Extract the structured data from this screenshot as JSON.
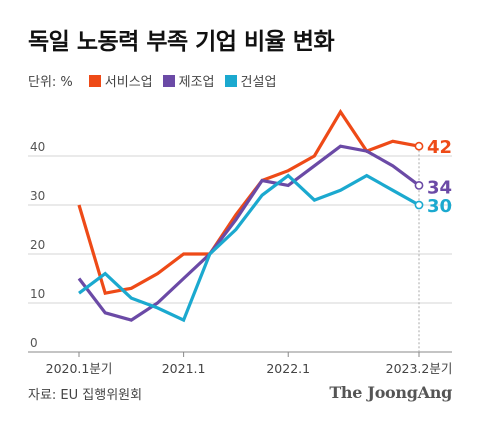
{
  "title": "독일 노동력 부족 기업 비율 변화",
  "unit_label": "단위: %",
  "source": "자료: EU 집행위원회",
  "brand": "The JoongAng",
  "chart_data": {
    "type": "line",
    "title": "독일 노동력 부족 기업 비율 변화",
    "ylim": [
      0,
      50
    ],
    "y_ticks": [
      0,
      10,
      20,
      30,
      40
    ],
    "grid": true,
    "x_tick_labels": [
      {
        "index": 0,
        "label": "2020.1분기"
      },
      {
        "index": 4,
        "label": "2021.1"
      },
      {
        "index": 8,
        "label": "2022.1"
      },
      {
        "index": 13,
        "label": "2023.2분기"
      }
    ],
    "series": [
      {
        "name": "서비스업",
        "color": "#ee4a17",
        "values": [
          30,
          12,
          13,
          16,
          20,
          20,
          28,
          35,
          37,
          40,
          49,
          41,
          43,
          42
        ],
        "end_label": "42"
      },
      {
        "name": "제조업",
        "color": "#6b4aa6",
        "values": [
          15,
          8,
          6.5,
          10,
          15,
          20,
          27,
          35,
          34,
          38,
          42,
          41,
          38,
          34
        ],
        "end_label": "34"
      },
      {
        "name": "건설업",
        "color": "#1ba9cf",
        "values": [
          12,
          16,
          11,
          9,
          6.5,
          20,
          25,
          32,
          36,
          31,
          33,
          36,
          33,
          30
        ],
        "end_label": "30"
      }
    ]
  }
}
